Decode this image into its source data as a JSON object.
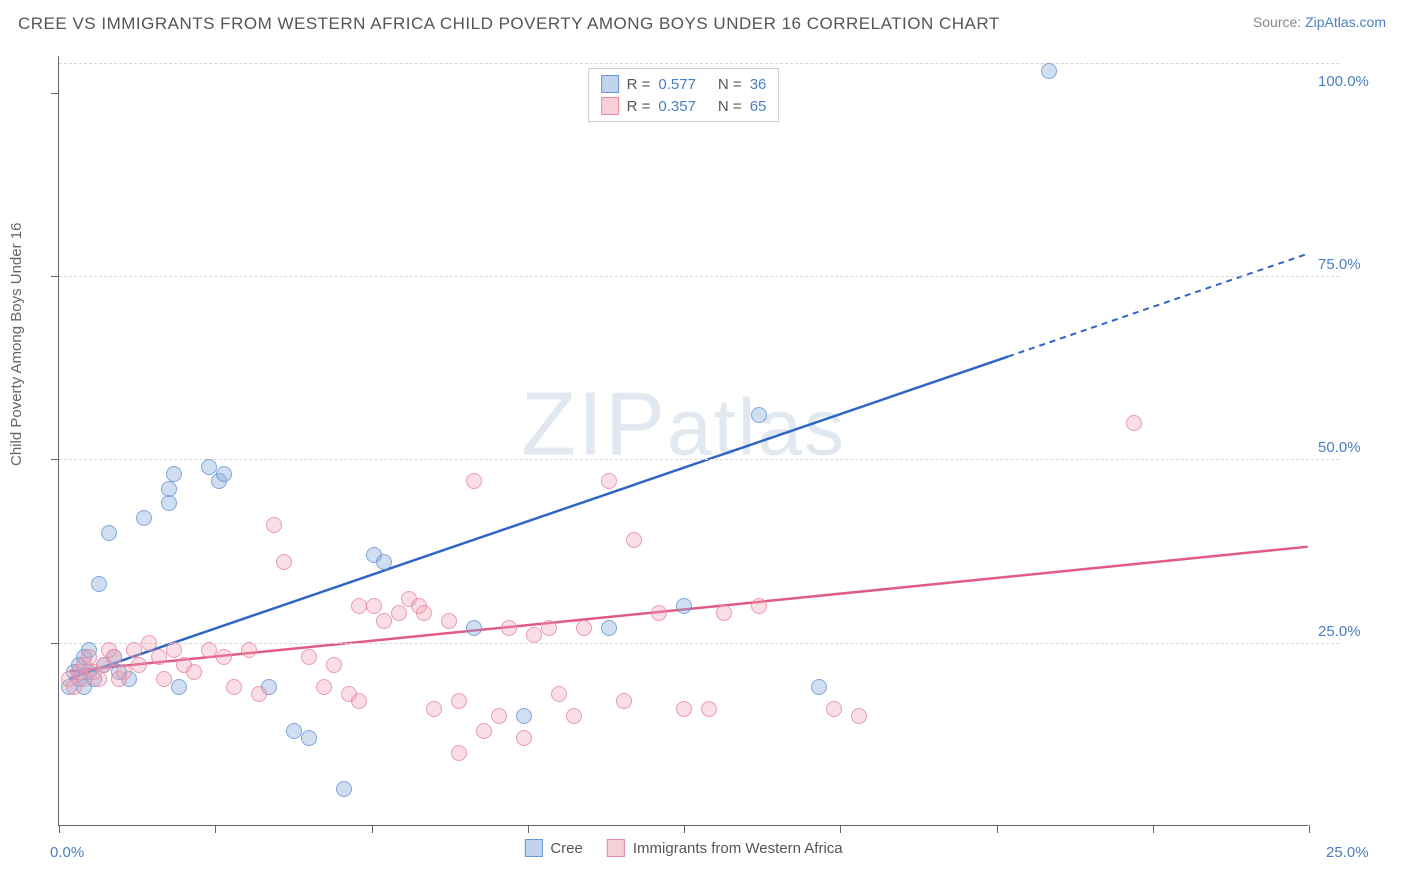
{
  "header": {
    "title": "CREE VS IMMIGRANTS FROM WESTERN AFRICA CHILD POVERTY AMONG BOYS UNDER 16 CORRELATION CHART",
    "source_prefix": "Source: ",
    "source_link": "ZipAtlas.com"
  },
  "watermark": {
    "z": "Z",
    "ip": "IP",
    "atlas": "atlas"
  },
  "chart": {
    "type": "scatter-correlation",
    "ylabel": "Child Poverty Among Boys Under 16",
    "xlim": [
      0,
      25
    ],
    "ylim": [
      0,
      105
    ],
    "xticks": [
      0,
      3.125,
      6.25,
      9.375,
      12.5,
      15.625,
      18.75,
      21.875,
      25
    ],
    "xtick_labels": {
      "0": "0.0%",
      "25": "25.0%"
    },
    "yticks": [
      25,
      50,
      75,
      100
    ],
    "ytick_labels": {
      "25": "25.0%",
      "50": "50.0%",
      "75": "75.0%",
      "100": "100.0%"
    },
    "grid_y": [
      25,
      50,
      75,
      104
    ],
    "grid_color": "#d8d8d8",
    "background_color": "#ffffff",
    "axis_color": "#666666",
    "label_color": "#4a7fc0",
    "marker_size": 16,
    "series": [
      {
        "name": "Cree",
        "color_fill": "rgba(130,170,220,0.45)",
        "color_stroke": "#6a97d0",
        "r": 0.577,
        "n": 36,
        "trend": {
          "x1": 0.2,
          "y1": 20,
          "x2": 25,
          "y2": 78,
          "solid_until_x": 19,
          "color": "#2f66c4"
        },
        "points": [
          [
            0.2,
            19
          ],
          [
            0.3,
            21
          ],
          [
            0.4,
            20
          ],
          [
            0.4,
            22
          ],
          [
            0.5,
            23
          ],
          [
            0.6,
            24
          ],
          [
            0.6,
            21
          ],
          [
            0.7,
            20
          ],
          [
            0.8,
            33
          ],
          [
            1.0,
            40
          ],
          [
            1.2,
            21
          ],
          [
            1.4,
            20
          ],
          [
            1.7,
            42
          ],
          [
            2.2,
            44
          ],
          [
            2.2,
            46
          ],
          [
            2.3,
            48
          ],
          [
            2.4,
            19
          ],
          [
            3.0,
            49
          ],
          [
            3.2,
            47
          ],
          [
            3.3,
            48
          ],
          [
            4.2,
            19
          ],
          [
            4.7,
            13
          ],
          [
            5.0,
            12
          ],
          [
            5.7,
            5
          ],
          [
            6.3,
            37
          ],
          [
            6.5,
            36
          ],
          [
            8.3,
            27
          ],
          [
            9.3,
            15
          ],
          [
            11.0,
            27
          ],
          [
            12.5,
            30
          ],
          [
            14.0,
            56
          ],
          [
            15.2,
            19
          ],
          [
            19.8,
            103
          ],
          [
            0.5,
            19
          ],
          [
            0.9,
            22
          ],
          [
            1.1,
            23
          ]
        ]
      },
      {
        "name": "Immigrants from Western Africa",
        "color_fill": "rgba(240,160,180,0.4)",
        "color_stroke": "#e88aa5",
        "r": 0.357,
        "n": 65,
        "trend": {
          "x1": 0.2,
          "y1": 21,
          "x2": 25,
          "y2": 38,
          "solid_until_x": 25,
          "color": "#e05b84"
        },
        "points": [
          [
            0.2,
            20
          ],
          [
            0.3,
            19
          ],
          [
            0.4,
            21
          ],
          [
            0.5,
            20
          ],
          [
            0.5,
            22
          ],
          [
            0.6,
            23
          ],
          [
            0.7,
            21
          ],
          [
            0.8,
            20
          ],
          [
            0.9,
            22
          ],
          [
            1.0,
            24
          ],
          [
            1.1,
            23
          ],
          [
            1.2,
            20
          ],
          [
            1.3,
            21
          ],
          [
            1.5,
            24
          ],
          [
            1.6,
            22
          ],
          [
            1.8,
            25
          ],
          [
            2.0,
            23
          ],
          [
            2.1,
            20
          ],
          [
            2.3,
            24
          ],
          [
            2.5,
            22
          ],
          [
            2.7,
            21
          ],
          [
            3.0,
            24
          ],
          [
            3.3,
            23
          ],
          [
            3.5,
            19
          ],
          [
            3.8,
            24
          ],
          [
            4.0,
            18
          ],
          [
            4.3,
            41
          ],
          [
            4.5,
            36
          ],
          [
            5.0,
            23
          ],
          [
            5.3,
            19
          ],
          [
            5.5,
            22
          ],
          [
            5.8,
            18
          ],
          [
            6.0,
            17
          ],
          [
            6.3,
            30
          ],
          [
            6.5,
            28
          ],
          [
            6.8,
            29
          ],
          [
            7.0,
            31
          ],
          [
            7.3,
            29
          ],
          [
            7.5,
            16
          ],
          [
            7.8,
            28
          ],
          [
            8.0,
            17
          ],
          [
            8.3,
            47
          ],
          [
            8.5,
            13
          ],
          [
            8.8,
            15
          ],
          [
            9.0,
            27
          ],
          [
            9.3,
            12
          ],
          [
            9.5,
            26
          ],
          [
            9.8,
            27
          ],
          [
            10.0,
            18
          ],
          [
            10.3,
            15
          ],
          [
            10.5,
            27
          ],
          [
            11.0,
            47
          ],
          [
            11.3,
            17
          ],
          [
            11.5,
            39
          ],
          [
            12.0,
            29
          ],
          [
            12.5,
            16
          ],
          [
            13.0,
            16
          ],
          [
            13.3,
            29
          ],
          [
            14.0,
            30
          ],
          [
            15.5,
            16
          ],
          [
            16.0,
            15
          ],
          [
            21.5,
            55
          ],
          [
            7.2,
            30
          ],
          [
            8.0,
            10
          ],
          [
            6.0,
            30
          ]
        ]
      }
    ],
    "legend_bottom": [
      {
        "swatch": "blue",
        "label": "Cree"
      },
      {
        "swatch": "pink",
        "label": "Immigrants from Western Africa"
      }
    ],
    "legend_top": [
      {
        "swatch": "blue",
        "r": "0.577",
        "n": "36"
      },
      {
        "swatch": "pink",
        "r": "0.357",
        "n": "65"
      }
    ]
  }
}
